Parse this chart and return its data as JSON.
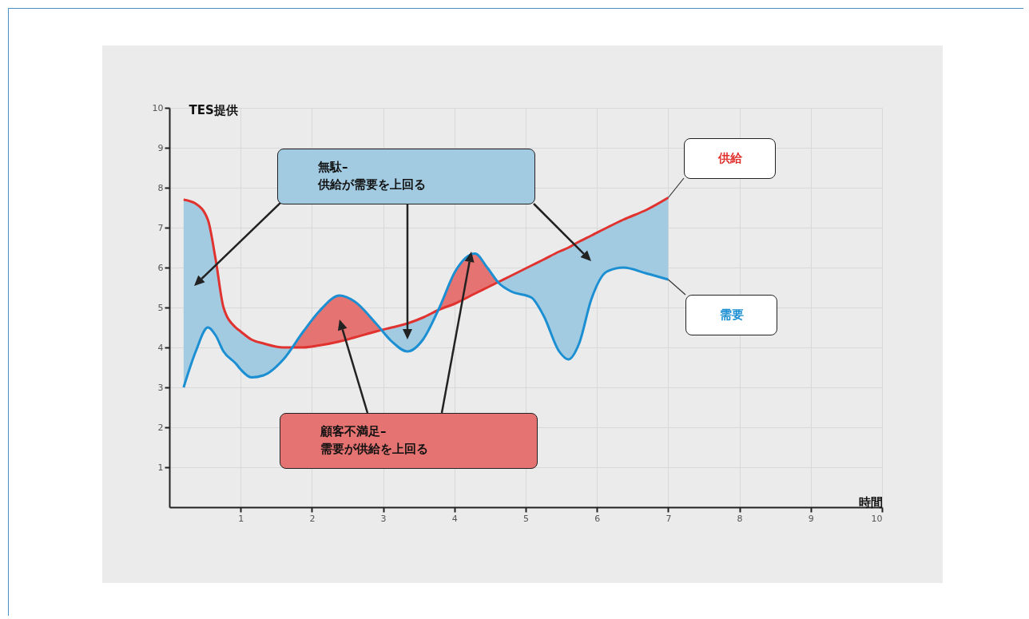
{
  "chart_data": {
    "type": "line",
    "xlabel": "時間",
    "ylabel": "TES提供",
    "x": [
      0.2,
      0.37,
      0.54,
      0.65,
      0.76,
      0.93,
      1.0,
      1.15,
      1.32,
      1.6,
      1.88,
      2.1,
      2.39,
      2.6,
      2.9,
      3.12,
      3.34,
      3.56,
      3.79,
      4.01,
      4.29,
      4.46,
      4.63,
      4.8,
      5.08,
      5.25,
      5.47,
      5.6,
      5.75,
      5.92,
      6.14,
      6.37,
      6.7,
      7.0
    ],
    "series": [
      {
        "name": "供給",
        "color": "#e0322f",
        "values": [
          7.7,
          7.6,
          7.2,
          6.2,
          5.0,
          4.5,
          4.4,
          4.2,
          4.1,
          4.0,
          4.0,
          4.05,
          4.15,
          4.25,
          4.4,
          4.5,
          4.6,
          4.75,
          4.95,
          5.1,
          5.35,
          5.5,
          5.65,
          5.8,
          6.05,
          6.2,
          6.4,
          6.5,
          6.65,
          6.8,
          7.0,
          7.2,
          7.45,
          7.75
        ]
      },
      {
        "name": "需要",
        "color": "#1b8fd2",
        "values": [
          3.0,
          3.9,
          4.5,
          4.3,
          3.9,
          3.6,
          3.45,
          3.25,
          3.3,
          3.7,
          4.4,
          4.9,
          5.3,
          5.15,
          4.6,
          4.15,
          3.9,
          4.2,
          5.0,
          5.9,
          6.35,
          6.0,
          5.6,
          5.4,
          5.25,
          4.8,
          3.9,
          3.7,
          4.1,
          5.2,
          5.9,
          6.0,
          5.85,
          5.7
        ]
      }
    ],
    "xlim": [
      0,
      10
    ],
    "ylim": [
      0,
      10
    ],
    "xticks": [
      1,
      2,
      3,
      4,
      5,
      6,
      7,
      8,
      9,
      10
    ],
    "yticks": [
      1,
      2,
      3,
      4,
      5,
      6,
      7,
      8,
      9,
      10
    ],
    "grid": true,
    "legend": false,
    "annotations": [
      "無駄–\n供給が需要を上回る",
      "顧客不満足–\n需要が供給を上回る"
    ]
  }
}
